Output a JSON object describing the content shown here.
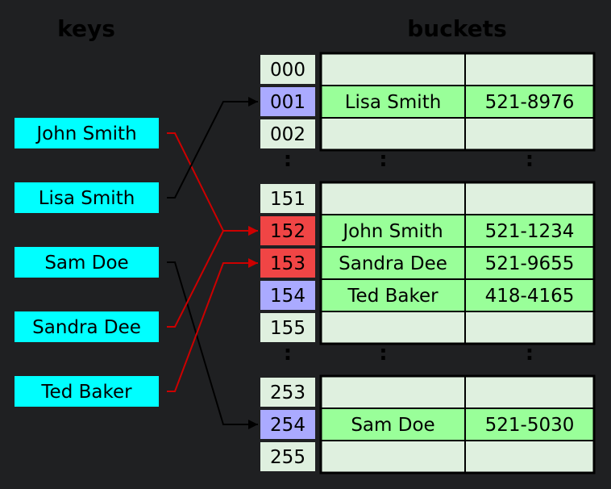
{
  "headers": {
    "keys": "keys",
    "buckets": "buckets"
  },
  "colors": {
    "background": "#1f2022",
    "key_fill": "#00ffff",
    "index_default": "#dff0df",
    "index_collision": "#f04545",
    "index_filled": "#aaaaff",
    "bucket_empty": "#dff0df",
    "bucket_filled": "#99ff99",
    "arrow_normal": "#000000",
    "arrow_collision": "#cc0000"
  },
  "keys": [
    "John Smith",
    "Lisa Smith",
    "Sam Doe",
    "Sandra Dee",
    "Ted Baker"
  ],
  "ellipsis": ":",
  "buckets": [
    {
      "index": "000",
      "state": "empty",
      "name": "",
      "phone": ""
    },
    {
      "index": "001",
      "state": "filled",
      "name": "Lisa Smith",
      "phone": "521-8976"
    },
    {
      "index": "002",
      "state": "empty",
      "name": "",
      "phone": ""
    },
    {
      "gap": true
    },
    {
      "index": "151",
      "state": "empty",
      "name": "",
      "phone": ""
    },
    {
      "index": "152",
      "state": "collision",
      "name": "John Smith",
      "phone": "521-1234"
    },
    {
      "index": "153",
      "state": "collision",
      "name": "Sandra Dee",
      "phone": "521-9655"
    },
    {
      "index": "154",
      "state": "filled",
      "name": "Ted Baker",
      "phone": "418-4165"
    },
    {
      "index": "155",
      "state": "empty",
      "name": "",
      "phone": ""
    },
    {
      "gap": true
    },
    {
      "index": "253",
      "state": "empty",
      "name": "",
      "phone": ""
    },
    {
      "index": "254",
      "state": "filled",
      "name": "Sam Doe",
      "phone": "521-5030"
    },
    {
      "index": "255",
      "state": "empty",
      "name": "",
      "phone": ""
    }
  ],
  "mappings": [
    {
      "key": "John Smith",
      "index": "152",
      "collision": true
    },
    {
      "key": "Lisa Smith",
      "index": "001",
      "collision": false
    },
    {
      "key": "Sam Doe",
      "index": "254",
      "collision": false
    },
    {
      "key": "Sandra Dee",
      "index": "152",
      "collision": true
    },
    {
      "key": "Ted Baker",
      "index": "153",
      "collision": true
    }
  ]
}
